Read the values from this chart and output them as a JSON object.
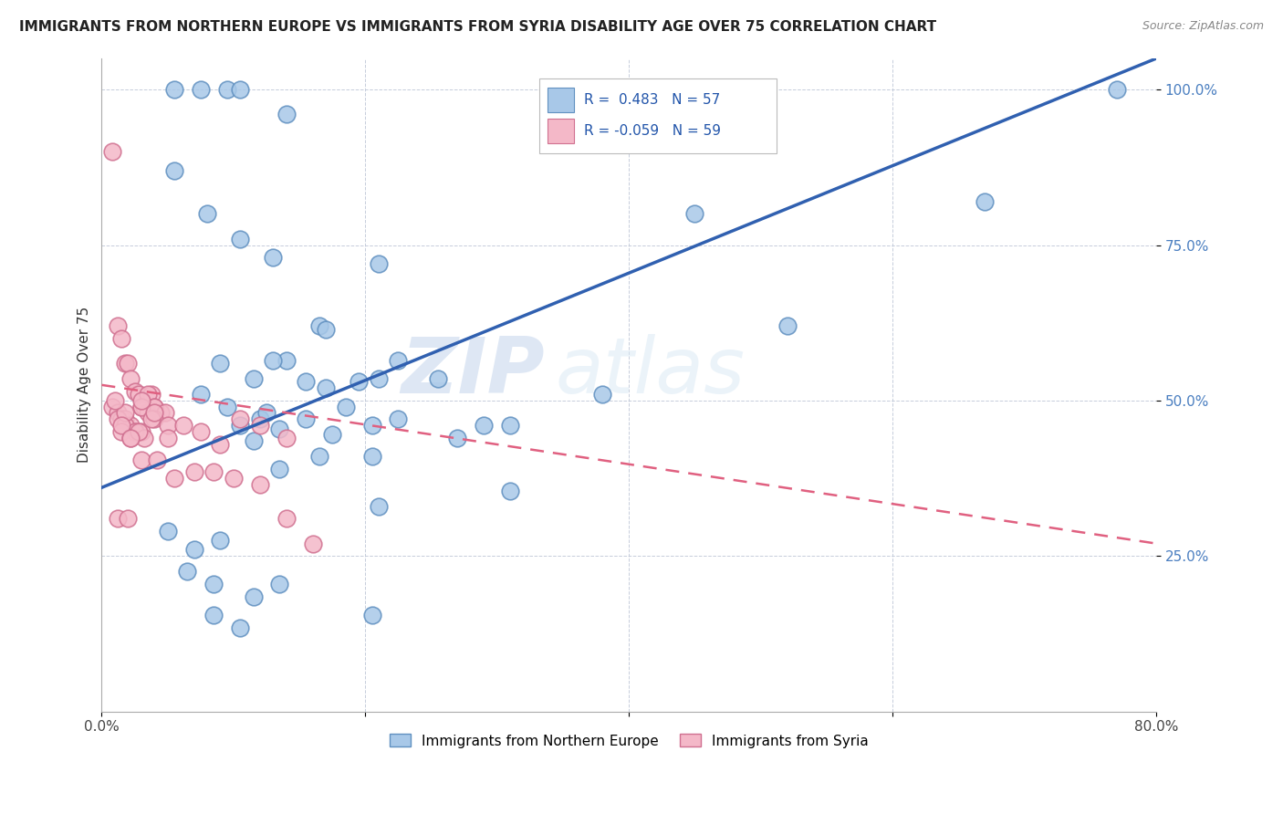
{
  "title": "IMMIGRANTS FROM NORTHERN EUROPE VS IMMIGRANTS FROM SYRIA DISABILITY AGE OVER 75 CORRELATION CHART",
  "source": "Source: ZipAtlas.com",
  "ylabel": "Disability Age Over 75",
  "x_min": 0.0,
  "x_max": 0.8,
  "y_min": 0.0,
  "y_max": 1.05,
  "x_ticks": [
    0.0,
    0.2,
    0.4,
    0.6,
    0.8
  ],
  "x_tick_labels": [
    "0.0%",
    "",
    "",
    "",
    "80.0%"
  ],
  "y_ticks": [
    0.25,
    0.5,
    0.75,
    1.0
  ],
  "y_tick_labels": [
    "25.0%",
    "50.0%",
    "75.0%",
    "100.0%"
  ],
  "blue_R": 0.483,
  "blue_N": 57,
  "pink_R": -0.059,
  "pink_N": 59,
  "blue_color": "#a8c8e8",
  "pink_color": "#f4b8c8",
  "blue_edge_color": "#6090c0",
  "pink_edge_color": "#d07090",
  "blue_line_color": "#3060b0",
  "pink_line_color": "#e06080",
  "watermark_zip": "ZIP",
  "watermark_atlas": "atlas",
  "blue_line_x0": 0.0,
  "blue_line_y0": 0.36,
  "blue_line_x1": 0.8,
  "blue_line_y1": 1.05,
  "pink_line_x0": 0.0,
  "pink_line_y0": 0.525,
  "pink_line_x1": 0.8,
  "pink_line_y1": 0.27,
  "blue_scatter_x": [
    0.055,
    0.075,
    0.095,
    0.105,
    0.14,
    0.21,
    0.055,
    0.08,
    0.105,
    0.13,
    0.165,
    0.09,
    0.115,
    0.14,
    0.17,
    0.21,
    0.075,
    0.095,
    0.12,
    0.155,
    0.185,
    0.225,
    0.105,
    0.125,
    0.155,
    0.195,
    0.115,
    0.135,
    0.175,
    0.225,
    0.29,
    0.135,
    0.165,
    0.205,
    0.27,
    0.38,
    0.21,
    0.31,
    0.05,
    0.07,
    0.09,
    0.065,
    0.085,
    0.115,
    0.085,
    0.105,
    0.135,
    0.205,
    0.13,
    0.17,
    0.205,
    0.31,
    0.52,
    0.67,
    0.77,
    0.45,
    0.255
  ],
  "blue_scatter_y": [
    1.0,
    1.0,
    1.0,
    1.0,
    0.96,
    0.72,
    0.87,
    0.8,
    0.76,
    0.73,
    0.62,
    0.56,
    0.535,
    0.565,
    0.615,
    0.535,
    0.51,
    0.49,
    0.47,
    0.53,
    0.49,
    0.565,
    0.46,
    0.48,
    0.47,
    0.53,
    0.435,
    0.455,
    0.445,
    0.47,
    0.46,
    0.39,
    0.41,
    0.41,
    0.44,
    0.51,
    0.33,
    0.355,
    0.29,
    0.26,
    0.275,
    0.225,
    0.205,
    0.185,
    0.155,
    0.135,
    0.205,
    0.155,
    0.565,
    0.52,
    0.46,
    0.46,
    0.62,
    0.82,
    1.0,
    0.8,
    0.535
  ],
  "pink_scatter_x": [
    0.008,
    0.012,
    0.015,
    0.018,
    0.02,
    0.022,
    0.025,
    0.028,
    0.03,
    0.032,
    0.035,
    0.038,
    0.008,
    0.012,
    0.015,
    0.018,
    0.022,
    0.025,
    0.03,
    0.035,
    0.04,
    0.045,
    0.012,
    0.018,
    0.025,
    0.032,
    0.04,
    0.048,
    0.015,
    0.022,
    0.03,
    0.04,
    0.05,
    0.018,
    0.028,
    0.038,
    0.05,
    0.062,
    0.075,
    0.09,
    0.105,
    0.12,
    0.14,
    0.01,
    0.015,
    0.022,
    0.03,
    0.04,
    0.012,
    0.02,
    0.03,
    0.042,
    0.055,
    0.07,
    0.085,
    0.1,
    0.12,
    0.14,
    0.16
  ],
  "pink_scatter_y": [
    0.9,
    0.62,
    0.6,
    0.56,
    0.56,
    0.535,
    0.515,
    0.51,
    0.49,
    0.49,
    0.48,
    0.51,
    0.49,
    0.48,
    0.47,
    0.47,
    0.46,
    0.45,
    0.45,
    0.51,
    0.49,
    0.48,
    0.47,
    0.46,
    0.45,
    0.44,
    0.49,
    0.48,
    0.45,
    0.44,
    0.49,
    0.47,
    0.46,
    0.48,
    0.45,
    0.47,
    0.44,
    0.46,
    0.45,
    0.43,
    0.47,
    0.46,
    0.44,
    0.5,
    0.46,
    0.44,
    0.5,
    0.48,
    0.31,
    0.31,
    0.405,
    0.405,
    0.375,
    0.385,
    0.385,
    0.375,
    0.365,
    0.31,
    0.27
  ]
}
